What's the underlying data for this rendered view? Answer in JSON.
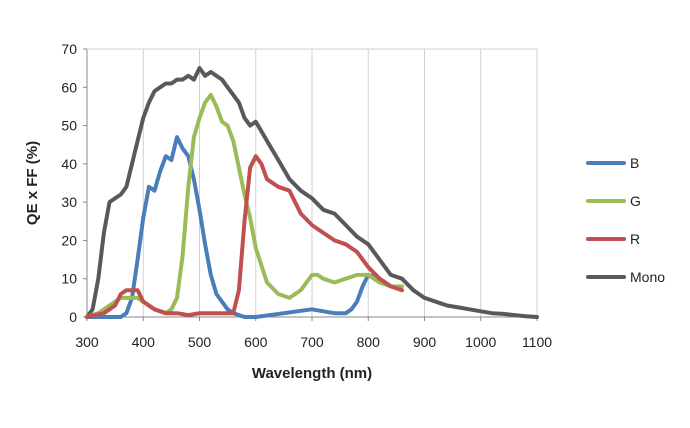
{
  "chart_data": {
    "type": "line",
    "title": "",
    "xlabel": "Wavelength (nm)",
    "ylabel": "QE x FF (%)",
    "xlim": [
      300,
      1100
    ],
    "ylim": [
      0,
      70
    ],
    "xticks": [
      300,
      400,
      500,
      600,
      700,
      800,
      900,
      1000,
      1100
    ],
    "yticks": [
      0,
      10,
      20,
      30,
      40,
      50,
      60,
      70
    ],
    "grid": {
      "vertical": true,
      "horizontal": false
    },
    "legend_position": "right",
    "series": [
      {
        "name": "B",
        "color": "#4a7ebb",
        "x": [
          300,
          340,
          360,
          370,
          380,
          390,
          400,
          410,
          420,
          430,
          440,
          450,
          460,
          470,
          480,
          490,
          500,
          510,
          520,
          530,
          540,
          550,
          560,
          570,
          580,
          600,
          650,
          700,
          720,
          740,
          760,
          770,
          780,
          790,
          800,
          820,
          840
        ],
        "y": [
          0,
          0,
          0,
          1,
          5,
          15,
          26,
          34,
          33,
          38,
          42,
          41,
          47,
          44,
          42,
          36,
          28,
          19,
          11,
          6,
          4,
          2,
          1,
          0.5,
          0,
          0,
          1,
          2,
          1.5,
          1,
          1,
          2,
          4,
          8,
          11,
          10,
          8
        ]
      },
      {
        "name": "G",
        "color": "#9bbb59",
        "x": [
          300,
          320,
          340,
          360,
          380,
          390,
          400,
          420,
          440,
          450,
          460,
          470,
          480,
          490,
          500,
          510,
          520,
          530,
          540,
          550,
          560,
          570,
          580,
          590,
          600,
          620,
          640,
          660,
          680,
          700,
          710,
          720,
          740,
          760,
          780,
          800,
          820,
          840,
          860
        ],
        "y": [
          0,
          1,
          3,
          5,
          5,
          5,
          4,
          2,
          1,
          2,
          5,
          16,
          34,
          47,
          52,
          56,
          58,
          55,
          51,
          50,
          46,
          39,
          32,
          26,
          18,
          9,
          6,
          5,
          7,
          11,
          11,
          10,
          9,
          10,
          11,
          11,
          9,
          8,
          8
        ]
      },
      {
        "name": "R",
        "color": "#c0504d",
        "x": [
          300,
          330,
          350,
          360,
          370,
          380,
          390,
          400,
          420,
          440,
          460,
          480,
          500,
          520,
          540,
          560,
          570,
          580,
          590,
          600,
          610,
          620,
          640,
          660,
          680,
          700,
          720,
          740,
          760,
          780,
          800,
          820,
          840,
          860
        ],
        "y": [
          0,
          1,
          3,
          6,
          7,
          7,
          7,
          4,
          2,
          1,
          1,
          0.5,
          1,
          1,
          1,
          1,
          7,
          25,
          39,
          42,
          40,
          36,
          34,
          33,
          27,
          24,
          22,
          20,
          19,
          17,
          13,
          10,
          8,
          7
        ]
      },
      {
        "name": "Mono",
        "color": "#595959",
        "x": [
          300,
          310,
          320,
          330,
          340,
          350,
          360,
          370,
          380,
          390,
          400,
          410,
          420,
          430,
          440,
          450,
          460,
          470,
          480,
          490,
          500,
          510,
          520,
          530,
          540,
          550,
          560,
          570,
          580,
          590,
          600,
          620,
          640,
          660,
          680,
          700,
          720,
          740,
          760,
          780,
          800,
          820,
          840,
          860,
          880,
          900,
          920,
          940,
          960,
          980,
          1000,
          1020,
          1040,
          1060,
          1080,
          1100
        ],
        "y": [
          0,
          2,
          10,
          22,
          30,
          31,
          32,
          34,
          40,
          46,
          52,
          56,
          59,
          60,
          61,
          61,
          62,
          62,
          63,
          62,
          65,
          63,
          64,
          63,
          62,
          60,
          58,
          56,
          52,
          50,
          51,
          46,
          41,
          36,
          33,
          31,
          28,
          27,
          24,
          21,
          19,
          15,
          11,
          10,
          7,
          5,
          4,
          3,
          2.5,
          2,
          1.5,
          1,
          0.8,
          0.5,
          0.2,
          0
        ]
      }
    ]
  }
}
